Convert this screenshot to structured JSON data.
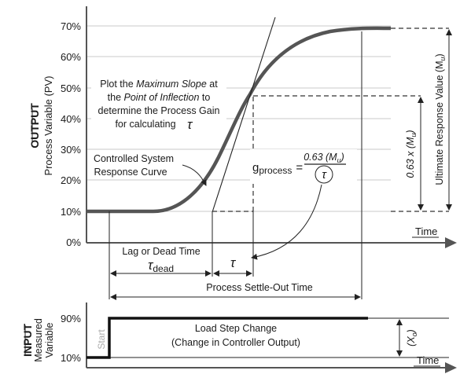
{
  "output_chart": {
    "axis_title_bold": "OUTPUT",
    "axis_title": "Process Variable (PV)",
    "y_ticks": [
      "70%",
      "60%",
      "50%",
      "40%",
      "30%",
      "20%",
      "10%",
      "0%"
    ],
    "x_label": "Time",
    "plot_label_line1": "Plot the ",
    "plot_label_line1_italic": "Maximum Slope",
    "plot_label_line1_end": " at",
    "plot_label_line2_pre": "the ",
    "plot_label_line2_italic": "Point of Inflection",
    "plot_label_line2_end": " to",
    "plot_label_line3": "determine the Process Gain",
    "plot_label_line4": "for calculating",
    "tau_symbol": "τ",
    "curve_label_line1": "Controlled System",
    "curve_label_line2": "Response Curve",
    "gain_label": "g",
    "gain_subscript": "process",
    "gain_eq": "=",
    "gain_numerator": "0.63 (M",
    "gain_numerator_sub": "u",
    "gain_numerator_end": ")",
    "lag_label": "Lag or Dead Time",
    "tau_dead_sub": "dead",
    "settle_label": "Process Settle-Out Time",
    "ultimate_label": "Ultimate Response Value  (M",
    "ultimate_sub": "u",
    "ultimate_end": ")",
    "fraction_label": "0.63 x (M",
    "fraction_sub": "u",
    "fraction_end": ")"
  },
  "input_chart": {
    "axis_title_bold": "INPUT",
    "axis_title_line1": "Measured",
    "axis_title_line2": "Variable",
    "y_ticks": [
      "90%",
      "10%"
    ],
    "x_label": "Time",
    "start_label": "Start",
    "step_label_line1": "Load Step Change",
    "step_label_line2": "(Change in Controller Output)",
    "step_size_label": "(X",
    "step_size_sub": "o",
    "step_size_end": ")"
  },
  "chart_data": [
    {
      "type": "line",
      "title": "",
      "xlabel": "Time",
      "ylabel": "Process Variable (PV)",
      "ylim": [
        0,
        70
      ],
      "y_unit": "%",
      "grid": true,
      "series": [
        {
          "name": "Controlled System Response Curve",
          "shape": "S-curve from 10% to ~69% after dead time",
          "start_value": 10,
          "final_value": 69,
          "inflection_value": 43
        }
      ]
    },
    {
      "type": "line",
      "title": "",
      "xlabel": "Time",
      "ylabel": "Measured Variable",
      "ylim": [
        10,
        90
      ],
      "y_unit": "%",
      "series": [
        {
          "name": "Load Step Change",
          "start_value": 10,
          "final_value": 90
        }
      ]
    }
  ]
}
